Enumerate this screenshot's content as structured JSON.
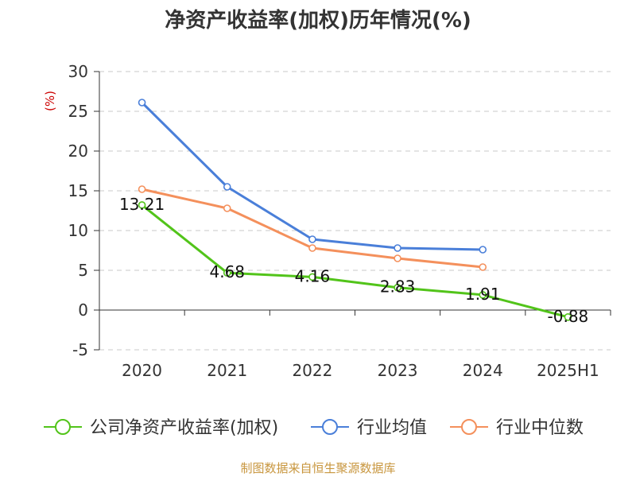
{
  "title": "净资产收益率(加权)历年情况(%)",
  "source": "制图数据来自恒生聚源数据库",
  "chart_data": {
    "type": "line",
    "title": "净资产收益率(加权)历年情况(%)",
    "ylabel": "(%)",
    "xlabel": "",
    "categories": [
      "2020",
      "2021",
      "2022",
      "2023",
      "2024",
      "2025H1"
    ],
    "ylim": [
      -5,
      30
    ],
    "yticks": [
      -5,
      0,
      5,
      10,
      15,
      20,
      25,
      30
    ],
    "grid": true,
    "legend_position": "bottom",
    "series": [
      {
        "name": "公司净资产收益率(加权)",
        "color": "#52c41a",
        "values": [
          13.21,
          4.68,
          4.16,
          2.83,
          1.91,
          -0.88
        ],
        "labels": [
          "13.21",
          "4.68",
          "4.16",
          "2.83",
          "1.91",
          "-0.88"
        ]
      },
      {
        "name": "行业均值",
        "color": "#4a7fd9",
        "values": [
          26.1,
          15.5,
          8.9,
          7.8,
          7.6,
          null
        ]
      },
      {
        "name": "行业中位数",
        "color": "#f4905c",
        "values": [
          15.2,
          12.8,
          7.8,
          6.5,
          5.4,
          null
        ]
      }
    ]
  }
}
